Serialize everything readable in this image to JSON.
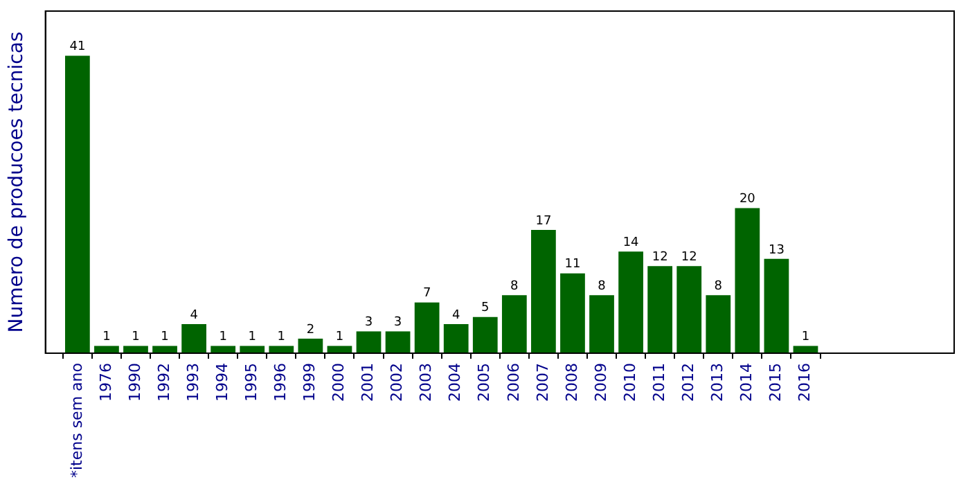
{
  "chart_data": {
    "type": "bar",
    "ylabel": "Numero de producoes tecnicas",
    "categories": [
      "*itens sem ano",
      "1976",
      "1990",
      "1992",
      "1993",
      "1994",
      "1995",
      "1996",
      "1999",
      "2000",
      "2001",
      "2002",
      "2003",
      "2004",
      "2005",
      "2006",
      "2007",
      "2008",
      "2009",
      "2010",
      "2011",
      "2012",
      "2013",
      "2014",
      "2015",
      "2016"
    ],
    "values": [
      41,
      1,
      1,
      1,
      4,
      1,
      1,
      1,
      2,
      1,
      3,
      3,
      7,
      4,
      5,
      8,
      17,
      11,
      8,
      14,
      12,
      12,
      8,
      20,
      13,
      1
    ],
    "color": "#006400",
    "data_labels": true,
    "grid": false,
    "legend": false,
    "tick_labels": "x"
  }
}
